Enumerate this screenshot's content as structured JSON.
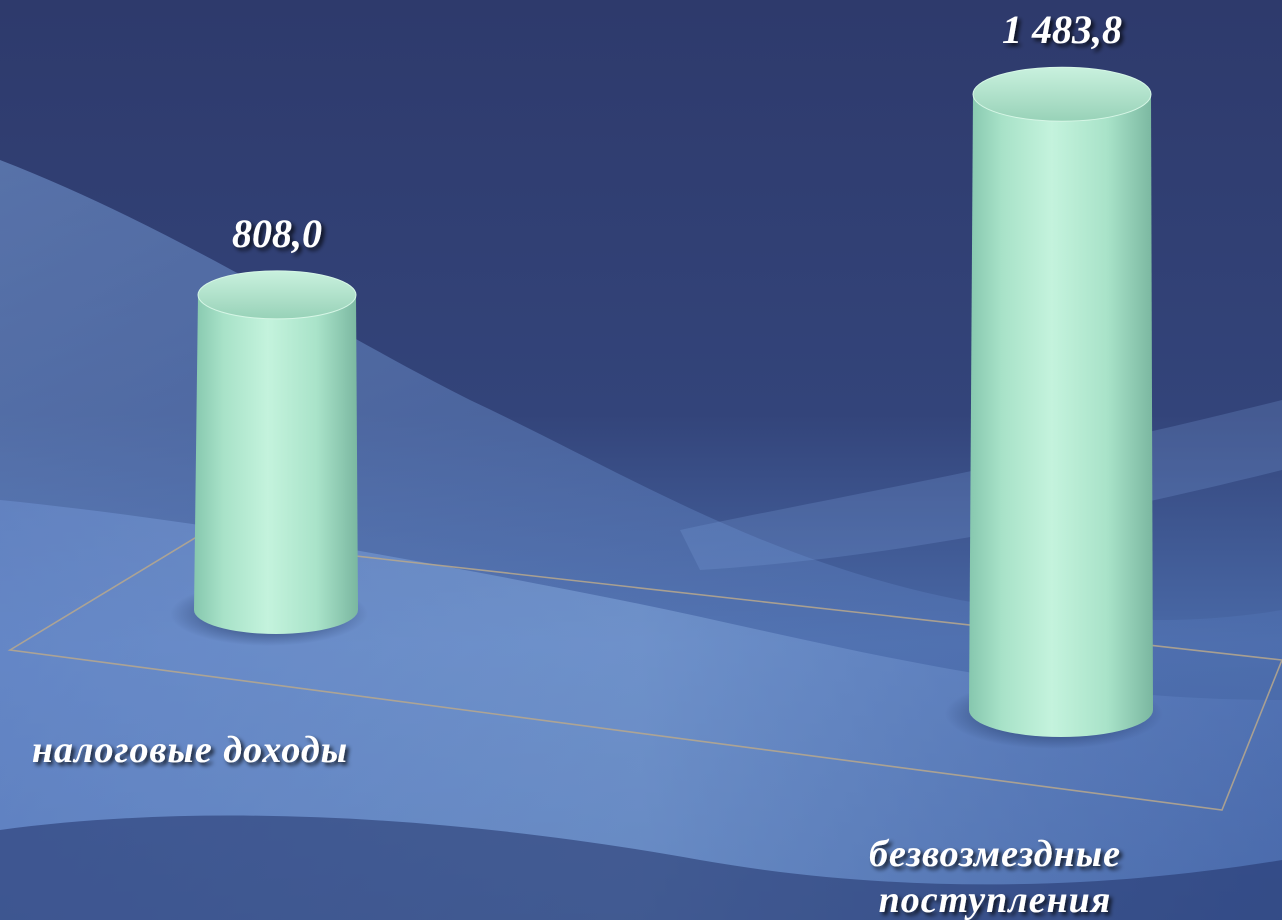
{
  "chart_data": {
    "type": "bar",
    "style": "3d-cylinder",
    "categories": [
      "налоговые доходы",
      "безвозмездные поступления"
    ],
    "category_lines": [
      [
        "налоговые доходы"
      ],
      [
        "безвозмездные",
        "поступления"
      ]
    ],
    "values": [
      808.0,
      1483.8
    ],
    "value_labels": [
      "808,0",
      "1 483,8"
    ],
    "title": "",
    "xlabel": "",
    "ylabel": "",
    "ylim": [
      0,
      1483.8
    ],
    "grid": false,
    "legend": "none"
  },
  "colors": {
    "background": "#2f3d70",
    "bar": "#b4ead3",
    "bar_shade": "#7fbfa8",
    "text": "#ffffff",
    "floor_line": "#b8a88c"
  }
}
